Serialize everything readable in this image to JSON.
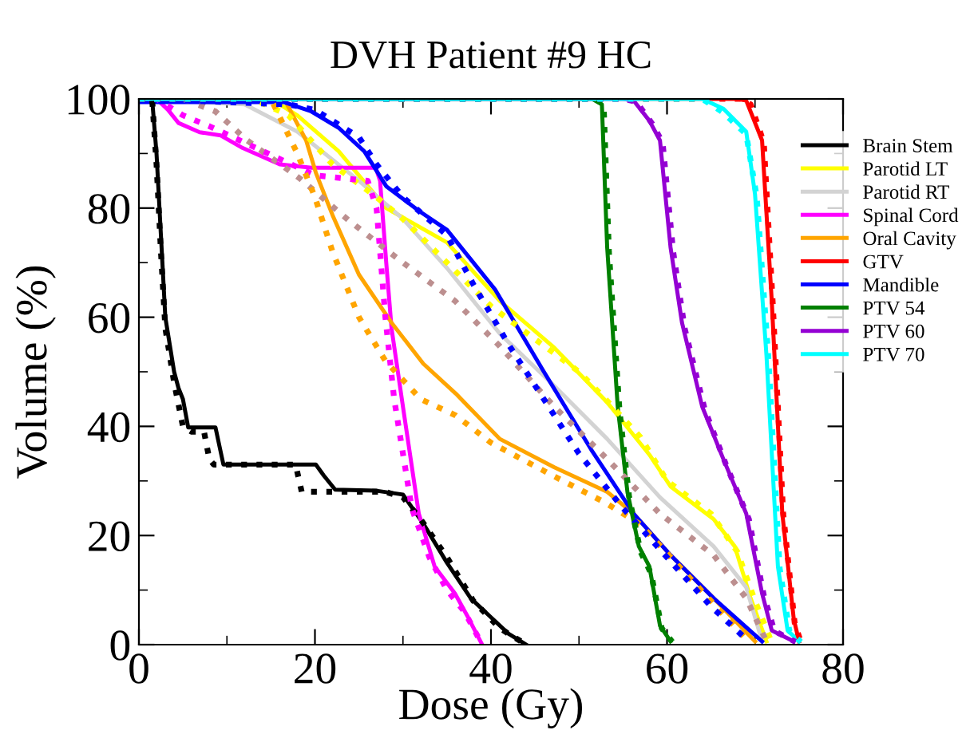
{
  "chart_data": {
    "type": "line",
    "title": "DVH Patient #9 HC",
    "xlabel": "Dose (Gy)",
    "ylabel": "Volume (%)",
    "xlim": [
      0,
      80
    ],
    "ylim": [
      0,
      100
    ],
    "xticks": [
      0,
      20,
      40,
      60,
      80
    ],
    "yticks": [
      0,
      20,
      40,
      60,
      80,
      100
    ],
    "grid": false,
    "legend": "right",
    "marker": "none",
    "series": [
      {
        "name": "Brain Stem",
        "color": "#000000",
        "line_style": "solid",
        "x": [
          0,
          1.5,
          2,
          2.5,
          3,
          4,
          4.5,
          5,
          5.6,
          8.7,
          9.2,
          9.6,
          20.1,
          21,
          22.3,
          27,
          30,
          32.3,
          35,
          37.7,
          40,
          42,
          43,
          44
        ],
        "values": [
          100,
          100,
          90,
          75,
          60,
          50,
          47,
          45,
          39.8,
          39.8,
          36,
          33,
          33,
          31,
          28.4,
          28.2,
          27.5,
          22.2,
          15,
          8.5,
          5,
          2,
          1,
          0
        ]
      },
      {
        "name": "Parotid LT",
        "color": "#ffff00",
        "line_style": "solid",
        "x": [
          0,
          15,
          18,
          22.7,
          28.1,
          35,
          41,
          47.2,
          53.2,
          58,
          60.4,
          65.3,
          67.7,
          69.5,
          71.3
        ],
        "values": [
          100,
          100,
          97,
          90.4,
          80,
          73.7,
          63,
          54.4,
          44.4,
          34.8,
          29,
          23,
          18,
          8.5,
          0.6
        ]
      },
      {
        "name": "Parotid RT",
        "color": "#d3d3d3",
        "line_style": "solid",
        "x": [
          0,
          12,
          18,
          25,
          30,
          35,
          41,
          47.2,
          53.2,
          59.2,
          65.3,
          69,
          70.8
        ],
        "values": [
          100,
          99,
          94,
          85,
          78,
          69,
          57,
          47.4,
          37.7,
          27,
          18,
          10.5,
          0.6
        ]
      },
      {
        "name": "Spinal Cord",
        "color": "#ff00ff",
        "line_style": "solid",
        "x": [
          0,
          2,
          3.3,
          4.5,
          6.9,
          9.3,
          11.8,
          16,
          19.6,
          26.9,
          27.4,
          28.1,
          28.7,
          30,
          31.8,
          33.6,
          35.9,
          37.4,
          39
        ],
        "values": [
          100,
          100,
          98,
          95.6,
          93.9,
          93.3,
          91,
          88,
          87.4,
          87.4,
          85,
          70,
          58,
          43.6,
          24,
          14.3,
          9.4,
          5,
          0
        ]
      },
      {
        "name": "Oral Cavity",
        "color": "#ffa500",
        "line_style": "solid",
        "x": [
          0,
          16.5,
          19,
          20.1,
          22,
          25,
          28.7,
          32.3,
          36,
          41,
          47.2,
          53.2,
          56.2,
          60.4,
          65.3,
          70
        ],
        "values": [
          100,
          100,
          92.4,
          86.5,
          78.7,
          67.8,
          59,
          51.5,
          46,
          37.7,
          32.5,
          28,
          24,
          16.4,
          8.5,
          0.6
        ]
      },
      {
        "name": "GTV",
        "color": "#ff0000",
        "line_style": "solid",
        "x": [
          0,
          68,
          69,
          70.8,
          71.9,
          73.1,
          74.4,
          75
        ],
        "values": [
          100,
          100,
          99.7,
          92.4,
          63,
          24,
          4.7,
          0.6
        ]
      },
      {
        "name": "Mandible",
        "color": "#0000ff",
        "line_style": "solid",
        "x": [
          0,
          16.5,
          19.6,
          22.7,
          25.6,
          28.1,
          31.8,
          35,
          40.5,
          45.9,
          51.4,
          56.2,
          60.4,
          65.3,
          70.8
        ],
        "values": [
          99.4,
          99.4,
          97.7,
          94.7,
          90.4,
          84,
          79.5,
          76,
          65,
          50.3,
          35.7,
          24,
          16.4,
          8.5,
          0.6
        ]
      },
      {
        "name": "PTV 54",
        "color": "#008000",
        "line_style": "solid",
        "x": [
          0,
          51.5,
          52.6,
          53.2,
          54.4,
          55.5,
          56.8,
          58,
          59.2,
          60.4
        ],
        "values": [
          100,
          100,
          99,
          72.8,
          43.6,
          28,
          18,
          14.3,
          3.5,
          0.6
        ]
      },
      {
        "name": "PTV 60",
        "color": "#9400d3",
        "line_style": "solid",
        "x": [
          0,
          55,
          56.2,
          58,
          59.2,
          60.4,
          61.7,
          64,
          66.4,
          69,
          70.8,
          71.9,
          74.4
        ],
        "values": [
          100,
          100,
          99.7,
          96,
          92.4,
          72.8,
          59,
          43.6,
          34,
          24,
          9.4,
          2.6,
          0.6
        ]
      },
      {
        "name": "PTV 70",
        "color": "#00ffff",
        "line_style": "solid",
        "x": [
          0,
          64,
          66.4,
          69,
          70,
          71.3,
          72.6,
          73.7,
          75
        ],
        "values": [
          100,
          100,
          98.2,
          94,
          82.5,
          53,
          14.3,
          2.6,
          0.6
        ]
      },
      {
        "name": null,
        "color": "#000000",
        "line_style": "dotted",
        "x": [
          0,
          1.5,
          2,
          2.5,
          3,
          4,
          5,
          6,
          7.4,
          8,
          8.5,
          17.8,
          18.5,
          28,
          30,
          32,
          35,
          38,
          41,
          43,
          44
        ],
        "values": [
          100,
          100,
          88,
          72,
          58,
          48,
          40,
          39,
          39,
          34,
          33,
          33,
          28,
          28,
          27,
          23,
          16,
          8,
          3,
          1,
          0
        ]
      },
      {
        "name": null,
        "color": "#ffff00",
        "line_style": "dotted",
        "x": [
          0,
          13,
          17,
          22,
          27,
          30,
          35,
          40,
          45,
          50,
          53,
          57,
          60,
          65,
          68,
          70,
          72
        ],
        "values": [
          100,
          100,
          97,
          88,
          82,
          78,
          70,
          62,
          56,
          50,
          45,
          38,
          30,
          24,
          17,
          8,
          0
        ]
      },
      {
        "name": null,
        "color": "#bc8f8f",
        "line_style": "dotted",
        "x": [
          0,
          5,
          8.7,
          12.3,
          18.3,
          23.8,
          30,
          35.9,
          41,
          47.2,
          53.2,
          59.2,
          65.3,
          69,
          71.3
        ],
        "values": [
          100,
          100,
          97.7,
          92.4,
          85.4,
          77.8,
          70,
          63,
          54.7,
          43.6,
          34,
          24,
          16.4,
          8.5,
          0.6
        ]
      },
      {
        "name": null,
        "color": "#ff00ff",
        "line_style": "dotted",
        "x": [
          0,
          2,
          3,
          5,
          8,
          12,
          16,
          20,
          26,
          27,
          28,
          29,
          31,
          33,
          35,
          37,
          39
        ],
        "values": [
          100,
          100,
          99,
          97,
          95,
          92,
          89,
          86,
          85,
          80,
          60,
          45,
          25,
          16,
          10,
          6,
          0
        ]
      },
      {
        "name": null,
        "color": "#ffa500",
        "line_style": "dotted",
        "x": [
          0,
          15,
          18,
          20,
          22,
          25,
          28,
          32,
          36,
          40,
          47,
          53,
          57,
          61,
          65,
          69
        ],
        "values": [
          100,
          100,
          90,
          82,
          72,
          60,
          52,
          45,
          42,
          37,
          31,
          26,
          22,
          15,
          8,
          1
        ]
      },
      {
        "name": null,
        "color": "#ff0000",
        "line_style": "dotted",
        "x": [
          0,
          68.5,
          69.5,
          71,
          72,
          73.2,
          74.5,
          75.2
        ],
        "values": [
          100,
          100,
          99,
          92,
          63,
          24,
          4,
          0.5
        ]
      },
      {
        "name": null,
        "color": "#0000ff",
        "line_style": "dotted",
        "x": [
          0,
          17,
          20,
          22,
          25,
          27,
          30,
          35,
          38,
          42,
          46,
          50,
          55,
          60,
          65,
          69
        ],
        "values": [
          100,
          99,
          98,
          96,
          93,
          88,
          82,
          75,
          66,
          55,
          45,
          35,
          25,
          16,
          7,
          1
        ]
      },
      {
        "name": null,
        "color": "#008000",
        "line_style": "dotted",
        "x": [
          0,
          51.8,
          52.8,
          53.4,
          54.6,
          55.7,
          57,
          58.2,
          59.4,
          60.6
        ],
        "values": [
          100,
          100,
          99,
          72,
          43,
          27,
          17,
          13,
          3,
          0.5
        ]
      },
      {
        "name": null,
        "color": "#9400d3",
        "line_style": "dotted",
        "x": [
          0,
          55,
          56.5,
          58.3,
          59.5,
          60.7,
          62,
          64.3,
          66.7,
          69.3,
          71,
          72.2,
          74.6
        ],
        "values": [
          100,
          100,
          99.5,
          95.5,
          92,
          72,
          58,
          43,
          33,
          23,
          9,
          2.5,
          0.5
        ]
      },
      {
        "name": null,
        "color": "#00ffff",
        "line_style": "dotted",
        "x": [
          0,
          64,
          66.4,
          69,
          70.2,
          71.5,
          72.8,
          73.9,
          75.2
        ],
        "values": [
          100,
          100,
          97.5,
          93.5,
          82,
          53,
          14,
          2.5,
          0.5
        ]
      }
    ]
  }
}
